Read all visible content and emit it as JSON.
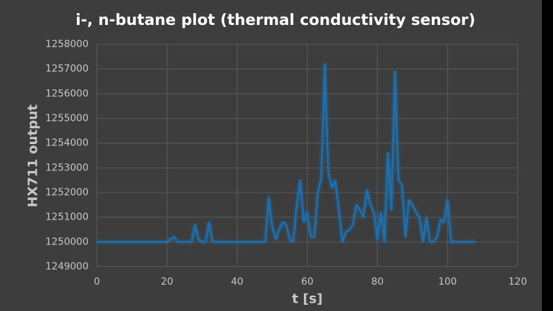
{
  "chart_data": {
    "type": "line",
    "title": "i-, n-butane plot (thermal conductivity sensor)",
    "x_label": "t [s]",
    "y_label": "HX711 output",
    "x": [
      0,
      20,
      22,
      23,
      27,
      28,
      29,
      30,
      31,
      32,
      33,
      48,
      49,
      50,
      51,
      52,
      53,
      54,
      55,
      56,
      57,
      58,
      59,
      60,
      61,
      62,
      63,
      64,
      65,
      66,
      67,
      68,
      69,
      70,
      71,
      72,
      73,
      74,
      75,
      76,
      77,
      78,
      79,
      80,
      81,
      82,
      83,
      84,
      85,
      86,
      87,
      88,
      89,
      90,
      91,
      92,
      93,
      94,
      95,
      96,
      97,
      98,
      99,
      100,
      101,
      108
    ],
    "series": [
      {
        "name": "HX711 output",
        "color": "#1f6fb0",
        "values": [
          1250000,
          1250000,
          1250200,
          1250000,
          1250000,
          1250700,
          1250100,
          1250000,
          1250000,
          1250800,
          1250000,
          1250000,
          1251800,
          1250600,
          1250100,
          1250500,
          1250800,
          1250700,
          1250100,
          1250000,
          1251500,
          1252500,
          1250800,
          1251200,
          1250200,
          1250200,
          1252000,
          1252600,
          1257200,
          1252800,
          1252200,
          1252500,
          1251300,
          1250000,
          1250400,
          1250500,
          1250700,
          1251500,
          1251300,
          1251000,
          1252100,
          1251500,
          1251200,
          1250100,
          1251200,
          1250000,
          1253600,
          1251300,
          1256900,
          1252500,
          1252300,
          1250200,
          1251700,
          1251500,
          1251200,
          1251000,
          1250000,
          1251000,
          1250000,
          1250000,
          1250200,
          1250900,
          1250800,
          1251700,
          1250000,
          1250000
        ]
      }
    ],
    "xlim": [
      0,
      120
    ],
    "xticks": [
      0,
      20,
      40,
      60,
      80,
      100,
      120
    ],
    "ylim": [
      1249000,
      1258000
    ],
    "yticks": [
      1249000,
      1250000,
      1251000,
      1252000,
      1253000,
      1254000,
      1255000,
      1256000,
      1257000,
      1258000
    ],
    "grid": true
  }
}
